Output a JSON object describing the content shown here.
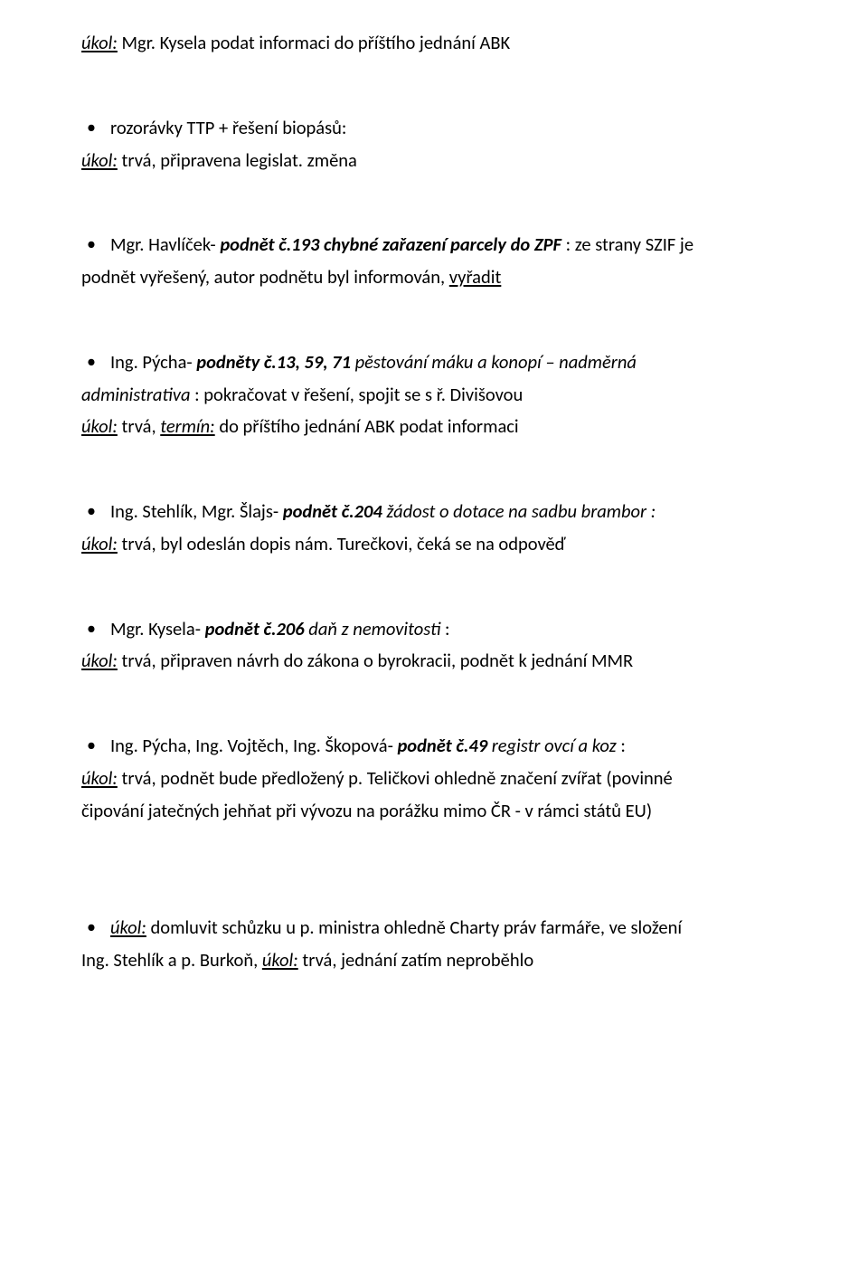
{
  "line_task_label": "úkol:",
  "line_term_label": "termín:",
  "block1_task_line": "Mgr. Kysela podat informaci do příštího jednání ABK",
  "block2_bullet": "rozorávky TTP + řešení biopásů:",
  "block2_task": "trvá, připravena legislat. změna",
  "block3_lead": "Mgr. Havlíček- ",
  "block3_em": "podnět č.193 chybné zařazení parcely do ZPF",
  "block3_rest_a": " : ze strany SZIF je",
  "block3_cont": "podnět vyřešený, autor podnětu byl informován, ",
  "block3_vyradit": "vyřadit",
  "block4_lead": "Ing. Pýcha- ",
  "block4_em": "podněty č.13, 59, 71",
  "block4_mid": " pěstování máku a konopí – nadměrná",
  "block4_cont_i": "administrativa",
  "block4_cont_rest": " : pokračovat v řešení, spojit se s ř. Divišovou",
  "block4_task_a": "trvá, ",
  "block4_task_b": "do příštího jednání ABK podat informaci",
  "block5_lead": "Ing. Stehlík, Mgr. Šlajs- ",
  "block5_em": "podnět č.204",
  "block5_rest_i": " žádost o dotace na sadbu brambor :",
  "block5_task": "trvá, byl odeslán dopis nám. Turečkovi, čeká se na odpověď",
  "block6_lead": "Mgr. Kysela- ",
  "block6_em": "podnět č.206",
  "block6_rest_i": " daň z nemovitosti",
  "block6_colon": " :",
  "block6_task": "trvá, připraven návrh do zákona o byrokracii, podnět k jednání MMR",
  "block7_lead": "Ing. Pýcha, Ing. Vojtěch, Ing. Škopová- ",
  "block7_em": "podnět č.49",
  "block7_rest_i": " registr ovcí a koz",
  "block7_colon": " :",
  "block7_task": "trvá, podnět bude předložený p. Teličkovi ohledně značení zvířat (povinné",
  "block7_cont": "čipování jatečných jehňat při vývozu na porážku mimo ČR - v rámci států EU)",
  "block8_ul_task": "domluvit schůzku u p. ministra ohledně Charty práv farmáře, ve složení",
  "block8_cont_a": "Ing. Stehlík a p. Burkoň, ",
  "block8_cont_task": "trvá, jednání zatím neproběhlo"
}
